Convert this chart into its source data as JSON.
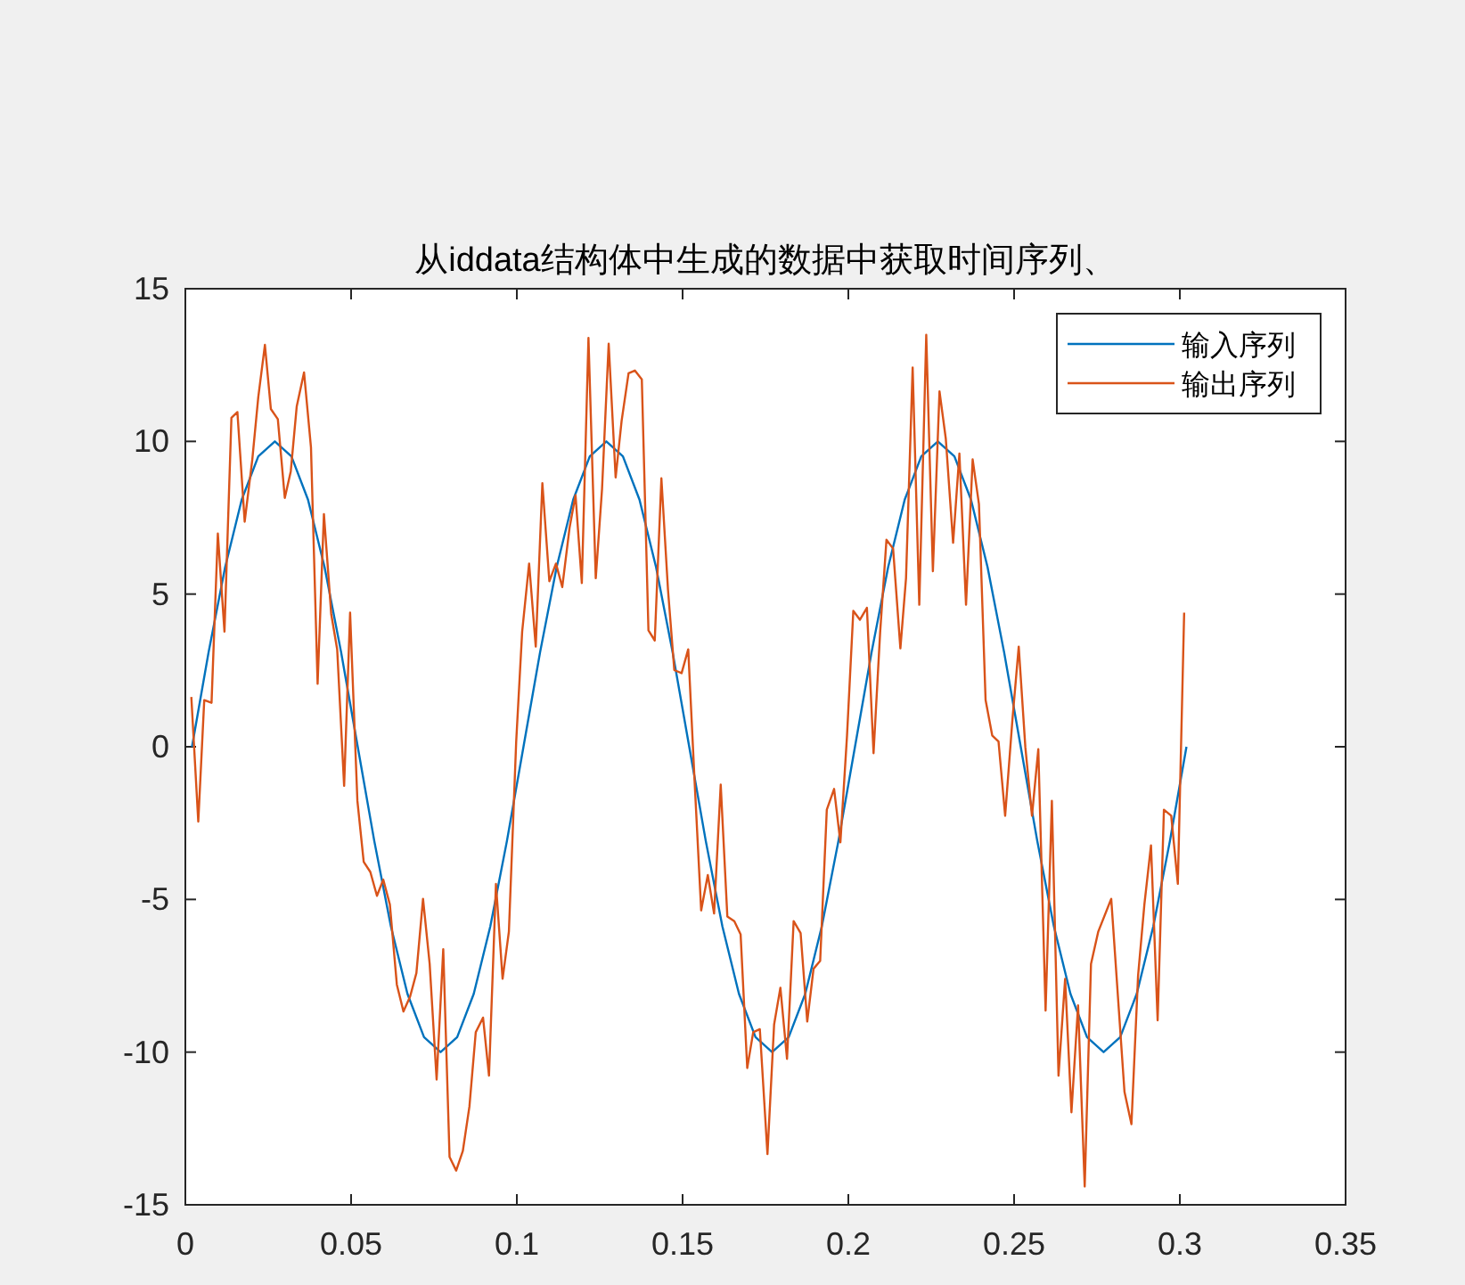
{
  "chart_data": {
    "type": "line",
    "title": "从iddata结构体中生成的数据中获取时间序列、",
    "legend": "top right",
    "xlim": [
      0,
      0.35
    ],
    "ylim": [
      -15,
      15
    ],
    "xticks": [
      0,
      0.05,
      0.1,
      0.15,
      0.2,
      0.25,
      0.3,
      0.35
    ],
    "yticks": [
      -15,
      -10,
      -5,
      0,
      5,
      10,
      15
    ],
    "series": [
      {
        "name": "输入序列",
        "color": "#0072bd",
        "x": [
          0.002,
          0.007,
          0.012,
          0.017,
          0.022,
          0.027,
          0.032,
          0.037,
          0.042,
          0.047,
          0.052,
          0.057,
          0.062,
          0.067,
          0.072,
          0.077,
          0.082,
          0.087,
          0.092,
          0.097,
          0.102,
          0.107,
          0.112,
          0.117,
          0.122,
          0.127,
          0.132,
          0.137,
          0.142,
          0.147,
          0.152,
          0.157,
          0.162,
          0.167,
          0.172,
          0.177,
          0.182,
          0.187,
          0.192,
          0.197,
          0.202,
          0.207,
          0.212,
          0.217,
          0.222,
          0.227,
          0.232,
          0.237,
          0.242,
          0.247,
          0.252,
          0.257,
          0.262,
          0.267,
          0.272,
          0.277,
          0.282,
          0.287,
          0.292,
          0.297,
          0.302
        ],
        "values": [
          0,
          3.09,
          5.88,
          8.09,
          9.51,
          10,
          9.51,
          8.09,
          5.88,
          3.09,
          0,
          -3.09,
          -5.88,
          -8.09,
          -9.51,
          -10,
          -9.51,
          -8.09,
          -5.88,
          -3.09,
          0,
          3.09,
          5.88,
          8.09,
          9.51,
          10,
          9.51,
          8.09,
          5.88,
          3.09,
          0,
          -3.09,
          -5.88,
          -8.09,
          -9.51,
          -10,
          -9.51,
          -8.09,
          -5.88,
          -3.09,
          0,
          3.09,
          5.88,
          8.09,
          9.51,
          10,
          9.51,
          8.09,
          5.88,
          3.09,
          0,
          -3.09,
          -5.88,
          -8.09,
          -9.51,
          -10,
          -9.51,
          -8.09,
          -5.88,
          -3.09,
          0
        ]
      },
      {
        "name": "输出序列",
        "color": "#d95319",
        "x": [
          0.0018,
          0.0039,
          0.0057,
          0.0079,
          0.0098,
          0.0118,
          0.0139,
          0.0157,
          0.0179,
          0.0202,
          0.022,
          0.024,
          0.0258,
          0.0279,
          0.03,
          0.0318,
          0.0336,
          0.0358,
          0.0379,
          0.0399,
          0.0418,
          0.044,
          0.0458,
          0.0479,
          0.0497,
          0.0519,
          0.0538,
          0.0558,
          0.0578,
          0.0597,
          0.0617,
          0.0638,
          0.0658,
          0.0678,
          0.0697,
          0.0717,
          0.0737,
          0.0758,
          0.0778,
          0.0797,
          0.0817,
          0.0837,
          0.0857,
          0.0876,
          0.0898,
          0.0916,
          0.0937,
          0.0957,
          0.0976,
          0.0998,
          0.1016,
          0.1037,
          0.1057,
          0.1077,
          0.1098,
          0.1118,
          0.1137,
          0.1159,
          0.1177,
          0.1196,
          0.1216,
          0.1238,
          0.1257,
          0.1277,
          0.1298,
          0.1316,
          0.1337,
          0.1356,
          0.1377,
          0.1397,
          0.1416,
          0.1436,
          0.1456,
          0.1475,
          0.1497,
          0.1517,
          0.1536,
          0.1556,
          0.1576,
          0.1595,
          0.1615,
          0.1635,
          0.1656,
          0.1675,
          0.1695,
          0.1713,
          0.1733,
          0.1756,
          0.1776,
          0.1795,
          0.1815,
          0.1835,
          0.1856,
          0.1876,
          0.1895,
          0.1915,
          0.1935,
          0.1957,
          0.1976,
          0.1996,
          0.2015,
          0.2035,
          0.2056,
          0.2076,
          0.2096,
          0.2115,
          0.2135,
          0.2157,
          0.2174,
          0.2194,
          0.2214,
          0.2235,
          0.2255,
          0.2275,
          0.2294,
          0.2316,
          0.2335,
          0.2355,
          0.2375,
          0.2394,
          0.2414,
          0.2434,
          0.2453,
          0.2473,
          0.2495,
          0.2514,
          0.2534,
          0.2554,
          0.2573,
          0.2595,
          0.2614,
          0.2634,
          0.2654,
          0.2673,
          0.2693,
          0.2713,
          0.2732,
          0.2754,
          0.2793,
          0.2833,
          0.2854,
          0.2874,
          0.2893,
          0.2913,
          0.2933,
          0.2952,
          0.2974,
          0.2994,
          0.3013
        ],
        "values": [
          1.63,
          -2.45,
          1.53,
          1.44,
          6.98,
          3.77,
          10.77,
          10.96,
          7.37,
          9.41,
          11.45,
          13.16,
          11.06,
          10.73,
          8.15,
          9.02,
          11.15,
          12.26,
          9.8,
          2.06,
          7.62,
          4.35,
          3.19,
          -1.28,
          4.39,
          -1.77,
          -3.77,
          -4.1,
          -4.88,
          -4.35,
          -5.17,
          -7.79,
          -8.67,
          -8.18,
          -7.41,
          -4.98,
          -7.11,
          -10.9,
          -6.63,
          -13.43,
          -13.88,
          -13.24,
          -11.78,
          -9.35,
          -8.87,
          -10.77,
          -4.49,
          -7.6,
          -6.05,
          0.17,
          3.77,
          6.0,
          3.28,
          8.63,
          5.42,
          6.0,
          5.23,
          7.17,
          8.24,
          5.36,
          13.39,
          5.52,
          8.44,
          13.2,
          8.82,
          10.67,
          12.23,
          12.32,
          12.03,
          3.81,
          3.48,
          8.79,
          5.13,
          2.51,
          2.41,
          3.19,
          -1.09,
          -5.36,
          -4.2,
          -5.46,
          -1.24,
          -5.56,
          -5.71,
          -6.14,
          -10.52,
          -9.35,
          -9.25,
          -13.34,
          -9.1,
          -7.89,
          -10.22,
          -5.71,
          -6.1,
          -9.0,
          -7.27,
          -7.01,
          -2.06,
          -1.38,
          -3.13,
          0.37,
          4.45,
          4.16,
          4.55,
          -0.21,
          3.77,
          6.78,
          6.49,
          3.22,
          5.52,
          12.42,
          4.65,
          13.49,
          5.75,
          11.64,
          10.09,
          6.68,
          9.6,
          4.65,
          9.41,
          7.95,
          1.53,
          0.37,
          0.17,
          -2.26,
          0.89,
          3.28,
          -0.02,
          -2.26,
          -0.08,
          -8.64,
          -1.77,
          -10.77,
          -7.6,
          -11.97,
          -8.47,
          -14.4,
          -7.11,
          -6.05,
          -4.98,
          -11.3,
          -12.36,
          -7.5,
          -5.17,
          -3.23,
          -8.96,
          -2.06,
          -2.26,
          -4.49,
          4.39
        ]
      }
    ]
  }
}
